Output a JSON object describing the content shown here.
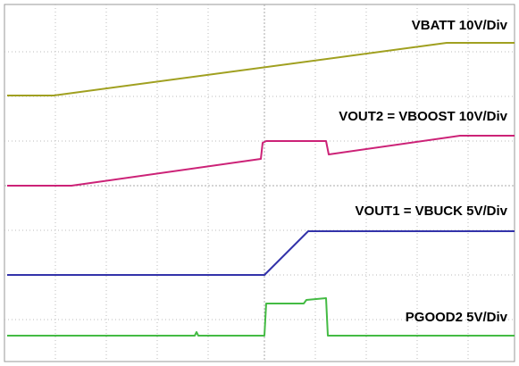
{
  "labels": [
    "VBATT 10V/Div",
    "VOUT2 = VBOOST 10V/Div",
    "VOUT1 = VBUCK 5V/Div",
    "PGOOD2 5V/Div"
  ]
}
